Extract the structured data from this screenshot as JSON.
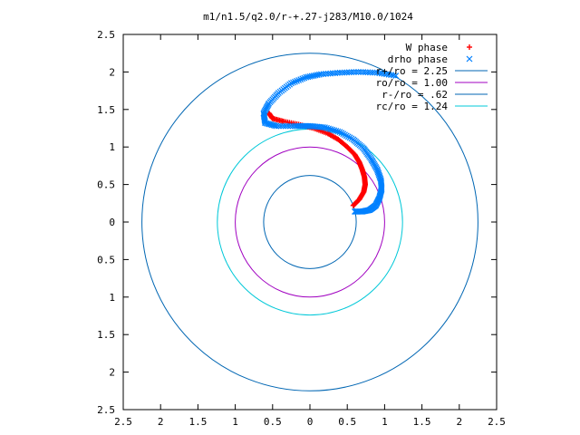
{
  "chart_data": {
    "type": "scatter",
    "title": "m1/n1.5/q2.0/r-+.27-j283/M10.0/1024",
    "xlabel": "",
    "ylabel": "",
    "xlim": [
      -2.5,
      2.5
    ],
    "ylim": [
      -2.5,
      2.5
    ],
    "x_ticks": [
      -2.5,
      -2,
      -1.5,
      -1,
      -0.5,
      0,
      0.5,
      1,
      1.5,
      2,
      2.5
    ],
    "y_ticks": [
      -2.5,
      -2,
      -1.5,
      -1,
      -0.5,
      0,
      0.5,
      1,
      1.5,
      2,
      2.5
    ],
    "x_tick_labels": [
      "2.5",
      "2",
      "1.5",
      "1",
      "0.5",
      "0",
      "0.5",
      "1",
      "1.5",
      "2",
      "2.5"
    ],
    "y_tick_labels": [
      "2.5",
      "2",
      "1.5",
      "1",
      "0.5",
      "0",
      "0.5",
      "1",
      "1.5",
      "2",
      "2.5"
    ],
    "grid": false,
    "legend_position": "top-right",
    "series": [
      {
        "name": "W phase",
        "kind": "points",
        "marker": "+",
        "color": "#ff0000",
        "points": [
          [
            0.58,
            0.22
          ],
          [
            0.66,
            0.3
          ],
          [
            0.72,
            0.4
          ],
          [
            0.74,
            0.5
          ],
          [
            0.73,
            0.6
          ],
          [
            0.7,
            0.7
          ],
          [
            0.66,
            0.8
          ],
          [
            0.6,
            0.9
          ],
          [
            0.5,
            1.0
          ],
          [
            0.38,
            1.1
          ],
          [
            0.24,
            1.18
          ],
          [
            0.05,
            1.25
          ],
          [
            -0.15,
            1.3
          ],
          [
            -0.35,
            1.34
          ],
          [
            -0.5,
            1.38
          ],
          [
            -0.55,
            1.45
          ]
        ]
      },
      {
        "name": "drho phase",
        "kind": "points",
        "marker": "x",
        "color": "#0080ff",
        "points": [
          [
            0.6,
            0.14
          ],
          [
            0.7,
            0.14
          ],
          [
            0.8,
            0.16
          ],
          [
            0.88,
            0.22
          ],
          [
            0.93,
            0.32
          ],
          [
            0.96,
            0.44
          ],
          [
            0.95,
            0.56
          ],
          [
            0.9,
            0.7
          ],
          [
            0.82,
            0.84
          ],
          [
            0.72,
            0.98
          ],
          [
            0.58,
            1.1
          ],
          [
            0.4,
            1.2
          ],
          [
            0.2,
            1.26
          ],
          [
            0.0,
            1.28
          ],
          [
            -0.2,
            1.28
          ],
          [
            -0.45,
            1.28
          ],
          [
            -0.6,
            1.32
          ],
          [
            -0.62,
            1.45
          ],
          [
            -0.55,
            1.58
          ],
          [
            -0.42,
            1.72
          ],
          [
            -0.25,
            1.85
          ],
          [
            -0.05,
            1.93
          ],
          [
            0.15,
            1.97
          ],
          [
            0.4,
            1.99
          ],
          [
            0.65,
            2.0
          ],
          [
            0.9,
            1.99
          ],
          [
            1.15,
            1.95
          ]
        ]
      },
      {
        "name": "r+/ro = 2.25",
        "kind": "circle",
        "radius": 2.25,
        "color": "#0066b3"
      },
      {
        "name": "ro/ro = 1.00",
        "kind": "circle",
        "radius": 1.0,
        "color": "#a000c0"
      },
      {
        "name": "r-/ro = .62",
        "kind": "circle",
        "radius": 0.62,
        "color": "#0066b3"
      },
      {
        "name": "rc/ro = 1.24",
        "kind": "circle",
        "radius": 1.24,
        "color": "#00c8d8"
      }
    ]
  }
}
